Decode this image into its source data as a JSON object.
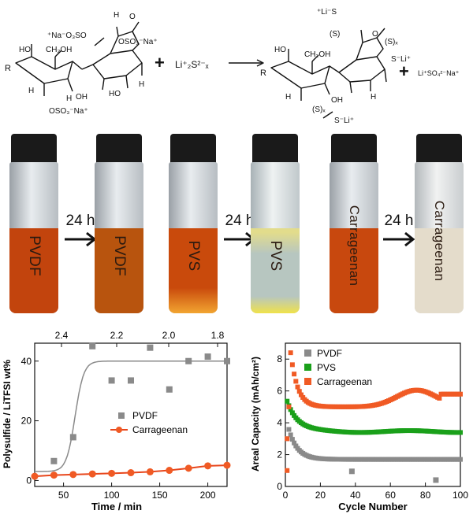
{
  "reaction": {
    "left_labels": {
      "na_oso3_so2o": "⁺Na⁻O₃SO",
      "ch2oh": "CH₂OH",
      "r": "R",
      "h_top": "H",
      "o_top": "O",
      "oso3na_right": "OSO₃⁻Na⁺",
      "oh_low": "OH",
      "oso3na_bottom": "OSO₃⁻Na⁺",
      "ho_left": "HO",
      "h_a": "H",
      "h_b": "H",
      "h_c": "H",
      "ho_right": "HO"
    },
    "plus1": "+",
    "reagent": "Li⁺₂S²⁻ₓ",
    "right_labels": {
      "li_s_top": "⁺Li⁻S",
      "s_paren": "(S)",
      "s_x": "(S)ₓ",
      "s_li_right": "S⁻Li⁺",
      "ch2oh": "CH₂OH",
      "r": "R",
      "ho": "HO",
      "oh": "OH",
      "h1": "H",
      "h2": "H",
      "sx_bottom": "(S)ₓ",
      "s_li_bottom": "S⁻Li⁺",
      "o_ring": "O"
    },
    "plus2": "+",
    "byproduct": "Li⁺SO₄²⁻Na⁺"
  },
  "vials": [
    {
      "label": "PVDF",
      "liquid": "#c2440d",
      "label_color": "#3a1a0a"
    },
    {
      "label": "PVDF",
      "liquid": "#b8540e",
      "label_color": "#3a1a0a"
    },
    {
      "label": "PVS",
      "liquid": "#c94a0c",
      "label_color": "#3a1a0a"
    },
    {
      "label": "PVS",
      "liquid": "#d6d08a",
      "label_color": "#2a2a1a"
    },
    {
      "label": "Carrageenan",
      "liquid": "#c8480e",
      "label_color": "#3a1a0a"
    },
    {
      "label": "Carrageenan",
      "liquid": "#e4dccb",
      "label_color": "#333333"
    }
  ],
  "arrows": [
    "24 h",
    "24 h",
    "24 h"
  ],
  "chart_data": [
    {
      "type": "scatter",
      "xlabel": "Time / min",
      "ylabel": "Polysulfide / LiTFSI wt%",
      "xlim": [
        20,
        220
      ],
      "ylim": [
        -2,
        46
      ],
      "x_ticks": [
        "50",
        "100",
        "150",
        "200"
      ],
      "y_ticks": [
        "0",
        "20",
        "40"
      ],
      "top_axis_ticks": [
        "2.4",
        "2.2",
        "2.0",
        "1.8"
      ],
      "series": [
        {
          "name": "PVDF",
          "color": "#8a8a8a",
          "marker": "square",
          "x": [
            40,
            60,
            80,
            100,
            120,
            140,
            160,
            180,
            200,
            220
          ],
          "y": [
            6.5,
            14.5,
            45,
            33.5,
            33.5,
            44.5,
            30.5,
            40,
            41.5,
            40
          ]
        },
        {
          "name": "Carrageenan",
          "color": "#f05a24",
          "marker": "circle",
          "x": [
            20,
            40,
            60,
            80,
            100,
            120,
            140,
            160,
            180,
            200,
            220
          ],
          "y": [
            1.4,
            1.8,
            2.0,
            2.2,
            2.4,
            2.6,
            2.9,
            3.4,
            4.1,
            4.9,
            5.1
          ]
        }
      ]
    },
    {
      "type": "scatter",
      "xlabel": "Cycle Number",
      "ylabel": "Areal Capacity (mAh/cm²)",
      "xlim": [
        0,
        100
      ],
      "ylim": [
        0,
        9
      ],
      "x_ticks": [
        "0",
        "20",
        "40",
        "60",
        "80",
        "100"
      ],
      "y_ticks": [
        "0",
        "2",
        "4",
        "6",
        "8"
      ],
      "series": [
        {
          "name": "PVDF",
          "color": "#8a8a8a"
        },
        {
          "name": "PVS",
          "color": "#1aa01a"
        },
        {
          "name": "Carrageenan",
          "color": "#f05a24"
        }
      ]
    }
  ]
}
